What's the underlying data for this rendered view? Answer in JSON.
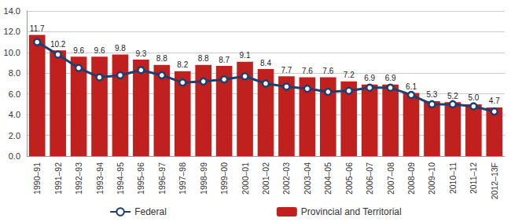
{
  "chart_data": {
    "type": "bar",
    "categories": [
      "1990–91",
      "1991–92",
      "1992–93",
      "1993–94",
      "1994–95",
      "1995–96",
      "1996–97",
      "1997–98",
      "1998–99",
      "1999–00",
      "2000–01",
      "2001–02",
      "2002–03",
      "2003–04",
      "2004–05",
      "2005–06",
      "2006–07",
      "2007–08",
      "2008–09",
      "2009–10",
      "2010–11",
      "2011–12",
      "2012–13F"
    ],
    "series": [
      {
        "name": "Federal",
        "type": "line",
        "color": "#1f3f6e",
        "marker": "circle",
        "values": [
          11.0,
          9.8,
          8.5,
          7.6,
          7.8,
          8.3,
          7.8,
          7.1,
          7.2,
          7.4,
          7.7,
          7.0,
          6.7,
          6.5,
          6.2,
          6.3,
          6.6,
          6.6,
          5.9,
          5.0,
          5.0,
          4.8,
          4.3
        ]
      },
      {
        "name": "Provincial and Territorial",
        "type": "bar",
        "color": "#c0201e",
        "data_labels": true,
        "values": [
          11.7,
          10.2,
          9.6,
          9.6,
          9.8,
          9.3,
          8.8,
          8.2,
          8.8,
          8.7,
          9.1,
          8.4,
          7.7,
          7.6,
          7.6,
          7.2,
          6.9,
          6.9,
          6.1,
          5.3,
          5.2,
          5.0,
          4.7
        ],
        "value_labels": [
          "11.7",
          "10.2",
          "9.6",
          "9.6",
          "9.8",
          "9.3",
          "8.8",
          "8.2",
          "8.8",
          "8.7",
          "9.1",
          "8.4",
          "7.7",
          "7.6",
          "7.6",
          "7.2",
          "6.9",
          "6.9",
          "6.1",
          "5.3",
          "5.2",
          "5.0",
          "4.7"
        ]
      }
    ],
    "ylim": [
      0,
      14
    ],
    "yticks": [
      {
        "value": 0,
        "label": "0.0"
      },
      {
        "value": 2,
        "label": "2.0"
      },
      {
        "value": 4,
        "label": "4.0"
      },
      {
        "value": 6,
        "label": "6.0"
      },
      {
        "value": 8,
        "label": "8.0"
      },
      {
        "value": 10,
        "label": "10.0"
      },
      {
        "value": 12,
        "label": "12.0"
      },
      {
        "value": 14,
        "label": "14.0"
      }
    ],
    "grid": true,
    "legend": "bottom"
  }
}
